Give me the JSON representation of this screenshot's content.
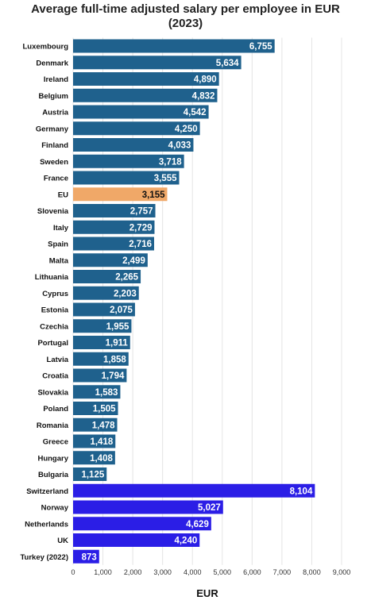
{
  "chart_data": {
    "type": "bar",
    "orientation": "horizontal",
    "title": "Average full-time adjusted salary per employee in EUR",
    "subtitle": "(2023)",
    "xlabel": "EUR",
    "ylabel": "",
    "xlim": [
      0,
      9000
    ],
    "ticks": [
      0,
      1000,
      2000,
      3000,
      4000,
      5000,
      6000,
      7000,
      8000,
      9000
    ],
    "tick_labels": [
      "0",
      "1,000",
      "2,000",
      "3,000",
      "4,000",
      "5,000",
      "6,000",
      "7,000",
      "8,000",
      "9,000"
    ],
    "grid": true,
    "legend": "none",
    "colors": {
      "eu_member": "#1f618d",
      "eu_average": "#f0a868",
      "non_eu": "#2b1ee6",
      "grid": "#e4e4e4"
    },
    "bars": [
      {
        "category": "Luxembourg",
        "value": 6755,
        "label": "6,755",
        "group": "eu_member"
      },
      {
        "category": "Denmark",
        "value": 5634,
        "label": "5,634",
        "group": "eu_member"
      },
      {
        "category": "Ireland",
        "value": 4890,
        "label": "4,890",
        "group": "eu_member"
      },
      {
        "category": "Belgium",
        "value": 4832,
        "label": "4,832",
        "group": "eu_member"
      },
      {
        "category": "Austria",
        "value": 4542,
        "label": "4,542",
        "group": "eu_member"
      },
      {
        "category": "Germany",
        "value": 4250,
        "label": "4,250",
        "group": "eu_member"
      },
      {
        "category": "Finland",
        "value": 4033,
        "label": "4,033",
        "group": "eu_member"
      },
      {
        "category": "Sweden",
        "value": 3718,
        "label": "3,718",
        "group": "eu_member"
      },
      {
        "category": "France",
        "value": 3555,
        "label": "3,555",
        "group": "eu_member"
      },
      {
        "category": "EU",
        "value": 3155,
        "label": "3,155",
        "group": "eu_average"
      },
      {
        "category": "Slovenia",
        "value": 2757,
        "label": "2,757",
        "group": "eu_member"
      },
      {
        "category": "Italy",
        "value": 2729,
        "label": "2,729",
        "group": "eu_member"
      },
      {
        "category": "Spain",
        "value": 2716,
        "label": "2,716",
        "group": "eu_member"
      },
      {
        "category": "Malta",
        "value": 2499,
        "label": "2,499",
        "group": "eu_member"
      },
      {
        "category": "Lithuania",
        "value": 2265,
        "label": "2,265",
        "group": "eu_member"
      },
      {
        "category": "Cyprus",
        "value": 2203,
        "label": "2,203",
        "group": "eu_member"
      },
      {
        "category": "Estonia",
        "value": 2075,
        "label": "2,075",
        "group": "eu_member"
      },
      {
        "category": "Czechia",
        "value": 1955,
        "label": "1,955",
        "group": "eu_member"
      },
      {
        "category": "Portugal",
        "value": 1911,
        "label": "1,911",
        "group": "eu_member"
      },
      {
        "category": "Latvia",
        "value": 1858,
        "label": "1,858",
        "group": "eu_member"
      },
      {
        "category": "Croatia",
        "value": 1794,
        "label": "1,794",
        "group": "eu_member"
      },
      {
        "category": "Slovakia",
        "value": 1583,
        "label": "1,583",
        "group": "eu_member"
      },
      {
        "category": "Poland",
        "value": 1505,
        "label": "1,505",
        "group": "eu_member"
      },
      {
        "category": "Romania",
        "value": 1478,
        "label": "1,478",
        "group": "eu_member"
      },
      {
        "category": "Greece",
        "value": 1418,
        "label": "1,418",
        "group": "eu_member"
      },
      {
        "category": "Hungary",
        "value": 1408,
        "label": "1,408",
        "group": "eu_member"
      },
      {
        "category": "Bulgaria",
        "value": 1125,
        "label": "1,125",
        "group": "eu_member"
      },
      {
        "category": "Switzerland",
        "value": 8104,
        "label": "8,104",
        "group": "non_eu"
      },
      {
        "category": "Norway",
        "value": 5027,
        "label": "5,027",
        "group": "non_eu"
      },
      {
        "category": "Netherlands",
        "value": 4629,
        "label": "4,629",
        "group": "non_eu"
      },
      {
        "category": "UK",
        "value": 4240,
        "label": "4,240",
        "group": "non_eu"
      },
      {
        "category": "Turkey (2022)",
        "value": 873,
        "label": "873",
        "group": "non_eu"
      }
    ]
  }
}
